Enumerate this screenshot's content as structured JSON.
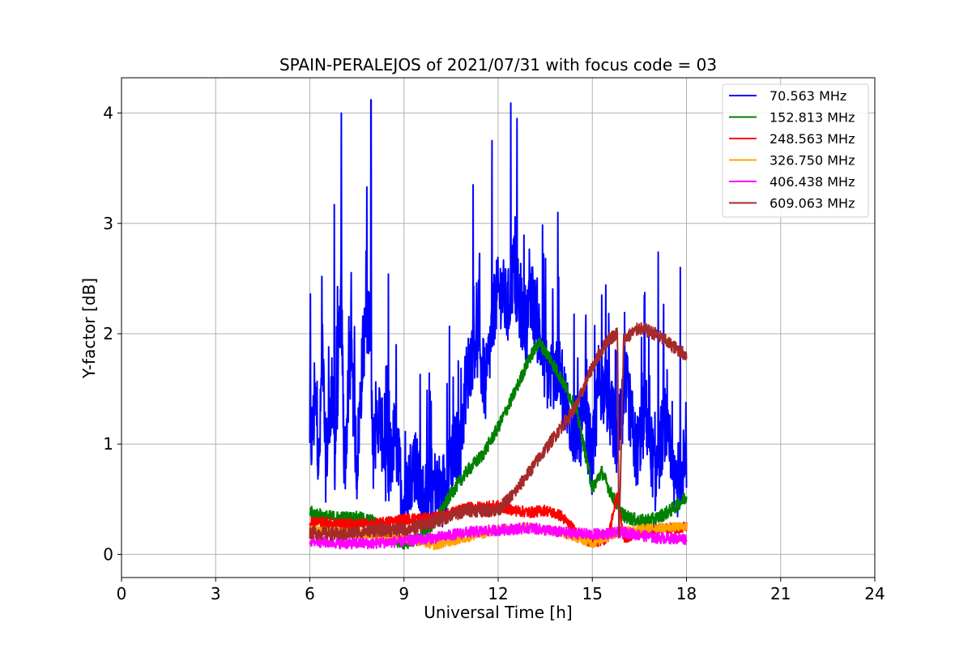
{
  "chart_data": {
    "type": "line",
    "title": "SPAIN-PERALEJOS of 2021/07/31 with focus code = 03",
    "xlabel": "Universal Time [h]",
    "ylabel": "Y-factor [dB]",
    "xlim": [
      0,
      24
    ],
    "ylim": [
      -0.21,
      4.32
    ],
    "xticks": [
      "0",
      "3",
      "6",
      "9",
      "12",
      "15",
      "18",
      "21",
      "24"
    ],
    "yticks": [
      "0",
      "1",
      "2",
      "3",
      "4"
    ],
    "grid": true,
    "legend_position": "top-right",
    "series": [
      {
        "name": " 70.563 MHz",
        "color": "#0000ff",
        "x": [
          6.0,
          6.2,
          6.3,
          6.4,
          6.5,
          6.7,
          6.8,
          7.0,
          7.1,
          7.3,
          7.5,
          7.7,
          7.9,
          8.0,
          8.2,
          8.5,
          8.7,
          9.0,
          9.3,
          9.6,
          9.9,
          10.2,
          10.5,
          10.8,
          11.0,
          11.3,
          11.6,
          11.9,
          12.1,
          12.3,
          12.5,
          12.7,
          12.9,
          13.1,
          13.3,
          13.6,
          13.9,
          14.2,
          14.5,
          14.8,
          15.0,
          15.2,
          15.5,
          15.8,
          16.1,
          16.4,
          16.7,
          17.0,
          17.3,
          17.6,
          17.9,
          18.0
        ],
        "y": [
          0.9,
          1.4,
          0.75,
          2.0,
          0.8,
          1.5,
          0.9,
          2.4,
          0.75,
          1.8,
          0.8,
          1.9,
          2.2,
          0.9,
          1.3,
          0.65,
          1.1,
          0.45,
          0.85,
          0.5,
          0.65,
          0.55,
          0.9,
          1.0,
          1.6,
          2.0,
          1.5,
          2.3,
          2.4,
          2.2,
          2.6,
          2.2,
          2.1,
          2.3,
          2.0,
          1.6,
          1.7,
          1.3,
          1.1,
          1.2,
          0.8,
          1.6,
          1.4,
          1.0,
          1.5,
          0.9,
          1.3,
          0.7,
          1.2,
          0.6,
          0.8,
          0.7
        ],
        "spikes": [
          [
            6.02,
            2.36
          ],
          [
            6.78,
            3.17
          ],
          [
            7.0,
            4.0
          ],
          [
            7.95,
            4.12
          ],
          [
            8.5,
            2.54
          ],
          [
            11.2,
            3.35
          ],
          [
            11.8,
            3.75
          ],
          [
            12.4,
            4.09
          ],
          [
            12.6,
            3.95
          ],
          [
            13.9,
            3.1
          ],
          [
            15.3,
            2.35
          ],
          [
            17.1,
            2.74
          ],
          [
            17.8,
            2.6
          ]
        ]
      },
      {
        "name": "152.813 MHz",
        "color": "#008000",
        "x": [
          6.0,
          6.5,
          7.0,
          7.5,
          8.0,
          8.5,
          9.0,
          9.5,
          10.0,
          10.5,
          11.0,
          11.5,
          12.0,
          12.5,
          13.0,
          13.3,
          13.6,
          14.0,
          14.5,
          15.0,
          15.3,
          15.6,
          16.0,
          16.5,
          17.0,
          17.5,
          18.0
        ],
        "y": [
          0.38,
          0.34,
          0.33,
          0.33,
          0.3,
          0.15,
          0.1,
          0.15,
          0.3,
          0.55,
          0.75,
          0.9,
          1.15,
          1.45,
          1.78,
          1.92,
          1.8,
          1.6,
          1.3,
          0.6,
          0.75,
          0.55,
          0.35,
          0.3,
          0.32,
          0.4,
          0.52
        ]
      },
      {
        "name": "248.563 MHz",
        "color": "#ff0000",
        "x": [
          6.0,
          7.0,
          8.0,
          9.0,
          10.0,
          11.0,
          12.0,
          12.5,
          13.0,
          13.5,
          14.0,
          14.5,
          15.0,
          15.5,
          15.8,
          16.0,
          16.5,
          17.0,
          18.0
        ],
        "y": [
          0.3,
          0.28,
          0.27,
          0.32,
          0.33,
          0.42,
          0.44,
          0.4,
          0.38,
          0.4,
          0.35,
          0.2,
          0.1,
          0.15,
          0.55,
          0.15,
          0.2,
          0.22,
          0.25
        ]
      },
      {
        "name": "326.750 MHz",
        "color": "#ffa500",
        "x": [
          6.0,
          7.0,
          8.0,
          9.0,
          10.0,
          11.0,
          12.0,
          13.0,
          14.0,
          15.0,
          16.0,
          17.0,
          18.0
        ],
        "y": [
          0.22,
          0.2,
          0.18,
          0.15,
          0.08,
          0.15,
          0.22,
          0.25,
          0.2,
          0.1,
          0.22,
          0.24,
          0.25
        ]
      },
      {
        "name": "406.438 MHz",
        "color": "#ff00ff",
        "x": [
          6.0,
          7.0,
          8.0,
          9.0,
          10.0,
          11.0,
          12.0,
          13.0,
          14.0,
          15.0,
          16.0,
          17.0,
          18.0
        ],
        "y": [
          0.12,
          0.1,
          0.1,
          0.12,
          0.15,
          0.2,
          0.22,
          0.24,
          0.2,
          0.18,
          0.2,
          0.15,
          0.14
        ]
      },
      {
        "name": "609.063 MHz",
        "color": "#a52a2a",
        "x": [
          6.0,
          7.0,
          8.0,
          9.0,
          10.0,
          11.0,
          12.0,
          12.5,
          13.0,
          13.5,
          14.0,
          14.5,
          15.0,
          15.5,
          15.8,
          15.85,
          16.0,
          16.5,
          17.0,
          17.5,
          18.0
        ],
        "y": [
          0.2,
          0.18,
          0.22,
          0.22,
          0.3,
          0.4,
          0.4,
          0.55,
          0.75,
          0.95,
          1.15,
          1.35,
          1.7,
          1.95,
          2.0,
          0.1,
          1.95,
          2.05,
          2.0,
          1.9,
          1.8
        ]
      }
    ]
  }
}
